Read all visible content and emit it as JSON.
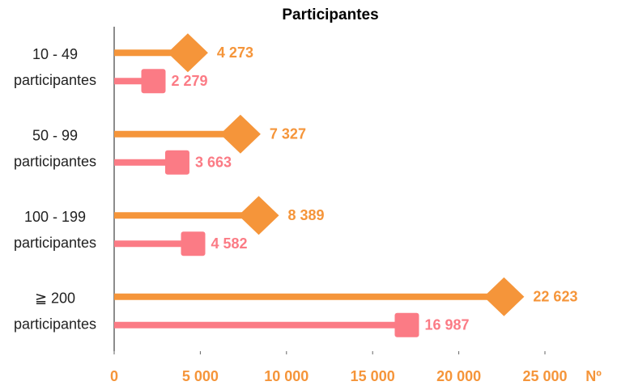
{
  "chart_data": {
    "type": "lollipop",
    "title": "Participantes",
    "orientation": "horizontal",
    "categories": [
      [
        "10 - 49",
        "participantes"
      ],
      [
        "50 - 99",
        "participantes"
      ],
      [
        "100 - 199",
        "participantes"
      ],
      [
        "≧ 200",
        "participantes"
      ]
    ],
    "series": [
      {
        "color": "#f5953a",
        "marker": "diamond",
        "values": [
          4273,
          7327,
          8389,
          22623
        ],
        "value_labels": [
          "4 273",
          "7 327",
          "8 389",
          "22 623"
        ]
      },
      {
        "color": "#fb7b85",
        "marker": "square",
        "values": [
          2279,
          3663,
          4582,
          16987
        ],
        "value_labels": [
          "2 279",
          "3 663",
          "4 582",
          "16 987"
        ]
      }
    ],
    "xlabel": "Nº",
    "xlim": [
      0,
      25000
    ],
    "xticks": [
      0,
      {
        "value": 5000,
        "label": "5 000"
      },
      {
        "value": 10000,
        "label": "10 000"
      },
      {
        "value": 15000,
        "label": "15 000"
      },
      {
        "value": 20000,
        "label": "20 000"
      },
      {
        "value": 25000,
        "label": "25 000"
      }
    ],
    "grid": false
  }
}
